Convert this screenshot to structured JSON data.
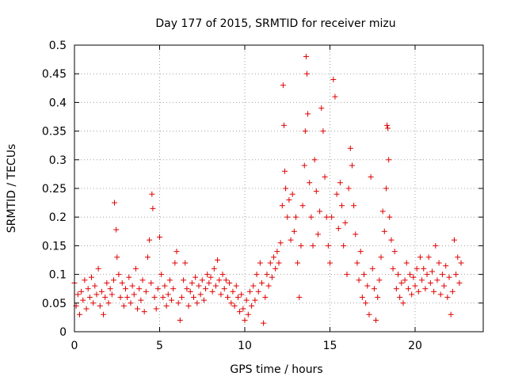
{
  "chart_data": {
    "type": "scatter",
    "title": "Day 177 of 2015, SRMTID for receiver mizu",
    "xlabel": "GPS time / hours",
    "ylabel": "SRMTID / TECUs",
    "xlim": [
      0,
      24
    ],
    "ylim": [
      0,
      0.5
    ],
    "xticks": [
      0,
      5,
      10,
      15,
      20
    ],
    "xtick_labels": [
      "0",
      "5",
      "10",
      "15",
      "20"
    ],
    "yticks": [
      0,
      0.05,
      0.1,
      0.15,
      0.2,
      0.25,
      0.3,
      0.35,
      0.4,
      0.45,
      0.5
    ],
    "ytick_labels": [
      "0",
      "0.05",
      "0.1",
      "0.15",
      "0.2",
      "0.25",
      "0.3",
      "0.35",
      "0.4",
      "0.45",
      "0.5"
    ],
    "grid": true,
    "marker": "+",
    "color": "#e00000",
    "series": [
      {
        "name": "SRMTID",
        "points": [
          [
            0.0,
            0.085
          ],
          [
            0.1,
            0.045
          ],
          [
            0.2,
            0.065
          ],
          [
            0.3,
            0.03
          ],
          [
            0.4,
            0.07
          ],
          [
            0.5,
            0.055
          ],
          [
            0.6,
            0.09
          ],
          [
            0.7,
            0.04
          ],
          [
            0.8,
            0.075
          ],
          [
            0.9,
            0.06
          ],
          [
            1.0,
            0.095
          ],
          [
            1.1,
            0.05
          ],
          [
            1.2,
            0.08
          ],
          [
            1.3,
            0.065
          ],
          [
            1.4,
            0.11
          ],
          [
            1.5,
            0.045
          ],
          [
            1.6,
            0.07
          ],
          [
            1.7,
            0.03
          ],
          [
            1.8,
            0.06
          ],
          [
            1.9,
            0.085
          ],
          [
            2.0,
            0.05
          ],
          [
            2.1,
            0.075
          ],
          [
            2.2,
            0.065
          ],
          [
            2.3,
            0.09
          ],
          [
            2.35,
            0.225
          ],
          [
            2.45,
            0.178
          ],
          [
            2.5,
            0.13
          ],
          [
            2.6,
            0.1
          ],
          [
            2.7,
            0.06
          ],
          [
            2.8,
            0.085
          ],
          [
            2.9,
            0.045
          ],
          [
            3.0,
            0.075
          ],
          [
            3.1,
            0.06
          ],
          [
            3.2,
            0.095
          ],
          [
            3.3,
            0.05
          ],
          [
            3.4,
            0.08
          ],
          [
            3.5,
            0.065
          ],
          [
            3.6,
            0.11
          ],
          [
            3.7,
            0.04
          ],
          [
            3.8,
            0.075
          ],
          [
            3.9,
            0.055
          ],
          [
            4.0,
            0.09
          ],
          [
            4.1,
            0.035
          ],
          [
            4.2,
            0.07
          ],
          [
            4.3,
            0.13
          ],
          [
            4.4,
            0.16
          ],
          [
            4.5,
            0.085
          ],
          [
            4.55,
            0.24
          ],
          [
            4.6,
            0.215
          ],
          [
            4.7,
            0.06
          ],
          [
            4.8,
            0.04
          ],
          [
            4.9,
            0.075
          ],
          [
            5.0,
            0.165
          ],
          [
            5.1,
            0.1
          ],
          [
            5.2,
            0.06
          ],
          [
            5.3,
            0.08
          ],
          [
            5.4,
            0.045
          ],
          [
            5.5,
            0.065
          ],
          [
            5.6,
            0.09
          ],
          [
            5.7,
            0.055
          ],
          [
            5.8,
            0.075
          ],
          [
            5.9,
            0.12
          ],
          [
            6.0,
            0.14
          ],
          [
            6.1,
            0.05
          ],
          [
            6.2,
            0.02
          ],
          [
            6.3,
            0.06
          ],
          [
            6.4,
            0.09
          ],
          [
            6.5,
            0.12
          ],
          [
            6.6,
            0.075
          ],
          [
            6.7,
            0.045
          ],
          [
            6.8,
            0.07
          ],
          [
            6.9,
            0.085
          ],
          [
            7.0,
            0.06
          ],
          [
            7.1,
            0.095
          ],
          [
            7.2,
            0.05
          ],
          [
            7.3,
            0.08
          ],
          [
            7.4,
            0.065
          ],
          [
            7.5,
            0.09
          ],
          [
            7.6,
            0.055
          ],
          [
            7.7,
            0.075
          ],
          [
            7.8,
            0.1
          ],
          [
            7.9,
            0.085
          ],
          [
            8.0,
            0.095
          ],
          [
            8.1,
            0.07
          ],
          [
            8.2,
            0.11
          ],
          [
            8.3,
            0.08
          ],
          [
            8.4,
            0.125
          ],
          [
            8.5,
            0.09
          ],
          [
            8.6,
            0.065
          ],
          [
            8.7,
            0.1
          ],
          [
            8.8,
            0.075
          ],
          [
            8.9,
            0.09
          ],
          [
            9.0,
            0.06
          ],
          [
            9.1,
            0.085
          ],
          [
            9.2,
            0.05
          ],
          [
            9.3,
            0.07
          ],
          [
            9.4,
            0.045
          ],
          [
            9.5,
            0.08
          ],
          [
            9.6,
            0.06
          ],
          [
            9.7,
            0.035
          ],
          [
            9.8,
            0.065
          ],
          [
            9.9,
            0.04
          ],
          [
            10.0,
            0.02
          ],
          [
            10.1,
            0.055
          ],
          [
            10.2,
            0.03
          ],
          [
            10.3,
            0.07
          ],
          [
            10.4,
            0.045
          ],
          [
            10.5,
            0.08
          ],
          [
            10.6,
            0.055
          ],
          [
            10.7,
            0.1
          ],
          [
            10.8,
            0.07
          ],
          [
            10.9,
            0.12
          ],
          [
            11.0,
            0.085
          ],
          [
            11.1,
            0.015
          ],
          [
            11.2,
            0.06
          ],
          [
            11.3,
            0.1
          ],
          [
            11.4,
            0.08
          ],
          [
            11.5,
            0.12
          ],
          [
            11.6,
            0.095
          ],
          [
            11.7,
            0.13
          ],
          [
            11.8,
            0.11
          ],
          [
            11.9,
            0.14
          ],
          [
            12.0,
            0.12
          ],
          [
            12.1,
            0.155
          ],
          [
            12.2,
            0.22
          ],
          [
            12.25,
            0.43
          ],
          [
            12.3,
            0.36
          ],
          [
            12.35,
            0.28
          ],
          [
            12.4,
            0.25
          ],
          [
            12.5,
            0.2
          ],
          [
            12.6,
            0.23
          ],
          [
            12.7,
            0.16
          ],
          [
            12.8,
            0.24
          ],
          [
            12.9,
            0.175
          ],
          [
            13.0,
            0.2
          ],
          [
            13.1,
            0.12
          ],
          [
            13.2,
            0.06
          ],
          [
            13.3,
            0.15
          ],
          [
            13.4,
            0.22
          ],
          [
            13.5,
            0.29
          ],
          [
            13.55,
            0.35
          ],
          [
            13.6,
            0.48
          ],
          [
            13.65,
            0.45
          ],
          [
            13.7,
            0.38
          ],
          [
            13.8,
            0.26
          ],
          [
            13.9,
            0.2
          ],
          [
            14.0,
            0.15
          ],
          [
            14.1,
            0.3
          ],
          [
            14.2,
            0.245
          ],
          [
            14.3,
            0.17
          ],
          [
            14.4,
            0.21
          ],
          [
            14.5,
            0.39
          ],
          [
            14.6,
            0.35
          ],
          [
            14.7,
            0.27
          ],
          [
            14.8,
            0.2
          ],
          [
            14.9,
            0.15
          ],
          [
            15.0,
            0.12
          ],
          [
            15.1,
            0.2
          ],
          [
            15.2,
            0.44
          ],
          [
            15.3,
            0.41
          ],
          [
            15.4,
            0.24
          ],
          [
            15.5,
            0.18
          ],
          [
            15.6,
            0.26
          ],
          [
            15.7,
            0.22
          ],
          [
            15.8,
            0.15
          ],
          [
            15.9,
            0.19
          ],
          [
            16.0,
            0.1
          ],
          [
            16.1,
            0.25
          ],
          [
            16.2,
            0.32
          ],
          [
            16.3,
            0.29
          ],
          [
            16.4,
            0.22
          ],
          [
            16.5,
            0.17
          ],
          [
            16.6,
            0.12
          ],
          [
            16.7,
            0.09
          ],
          [
            16.8,
            0.14
          ],
          [
            16.9,
            0.06
          ],
          [
            17.0,
            0.1
          ],
          [
            17.1,
            0.05
          ],
          [
            17.2,
            0.08
          ],
          [
            17.3,
            0.03
          ],
          [
            17.4,
            0.27
          ],
          [
            17.5,
            0.11
          ],
          [
            17.6,
            0.075
          ],
          [
            17.7,
            0.02
          ],
          [
            17.8,
            0.06
          ],
          [
            17.9,
            0.09
          ],
          [
            18.0,
            0.13
          ],
          [
            18.1,
            0.21
          ],
          [
            18.2,
            0.175
          ],
          [
            18.3,
            0.25
          ],
          [
            18.35,
            0.36
          ],
          [
            18.4,
            0.355
          ],
          [
            18.45,
            0.3
          ],
          [
            18.5,
            0.2
          ],
          [
            18.6,
            0.16
          ],
          [
            18.7,
            0.11
          ],
          [
            18.8,
            0.14
          ],
          [
            18.9,
            0.075
          ],
          [
            19.0,
            0.1
          ],
          [
            19.1,
            0.06
          ],
          [
            19.2,
            0.085
          ],
          [
            19.3,
            0.05
          ],
          [
            19.4,
            0.09
          ],
          [
            19.5,
            0.12
          ],
          [
            19.6,
            0.075
          ],
          [
            19.7,
            0.1
          ],
          [
            19.8,
            0.065
          ],
          [
            19.9,
            0.095
          ],
          [
            20.0,
            0.08
          ],
          [
            20.1,
            0.11
          ],
          [
            20.2,
            0.07
          ],
          [
            20.3,
            0.13
          ],
          [
            20.4,
            0.09
          ],
          [
            20.5,
            0.11
          ],
          [
            20.6,
            0.075
          ],
          [
            20.7,
            0.1
          ],
          [
            20.8,
            0.13
          ],
          [
            20.9,
            0.085
          ],
          [
            21.0,
            0.105
          ],
          [
            21.1,
            0.07
          ],
          [
            21.2,
            0.15
          ],
          [
            21.3,
            0.09
          ],
          [
            21.4,
            0.12
          ],
          [
            21.5,
            0.065
          ],
          [
            21.6,
            0.1
          ],
          [
            21.7,
            0.08
          ],
          [
            21.8,
            0.115
          ],
          [
            21.9,
            0.06
          ],
          [
            22.0,
            0.095
          ],
          [
            22.1,
            0.03
          ],
          [
            22.2,
            0.07
          ],
          [
            22.3,
            0.16
          ],
          [
            22.4,
            0.1
          ],
          [
            22.5,
            0.13
          ],
          [
            22.6,
            0.085
          ],
          [
            22.7,
            0.12
          ]
        ]
      }
    ]
  }
}
